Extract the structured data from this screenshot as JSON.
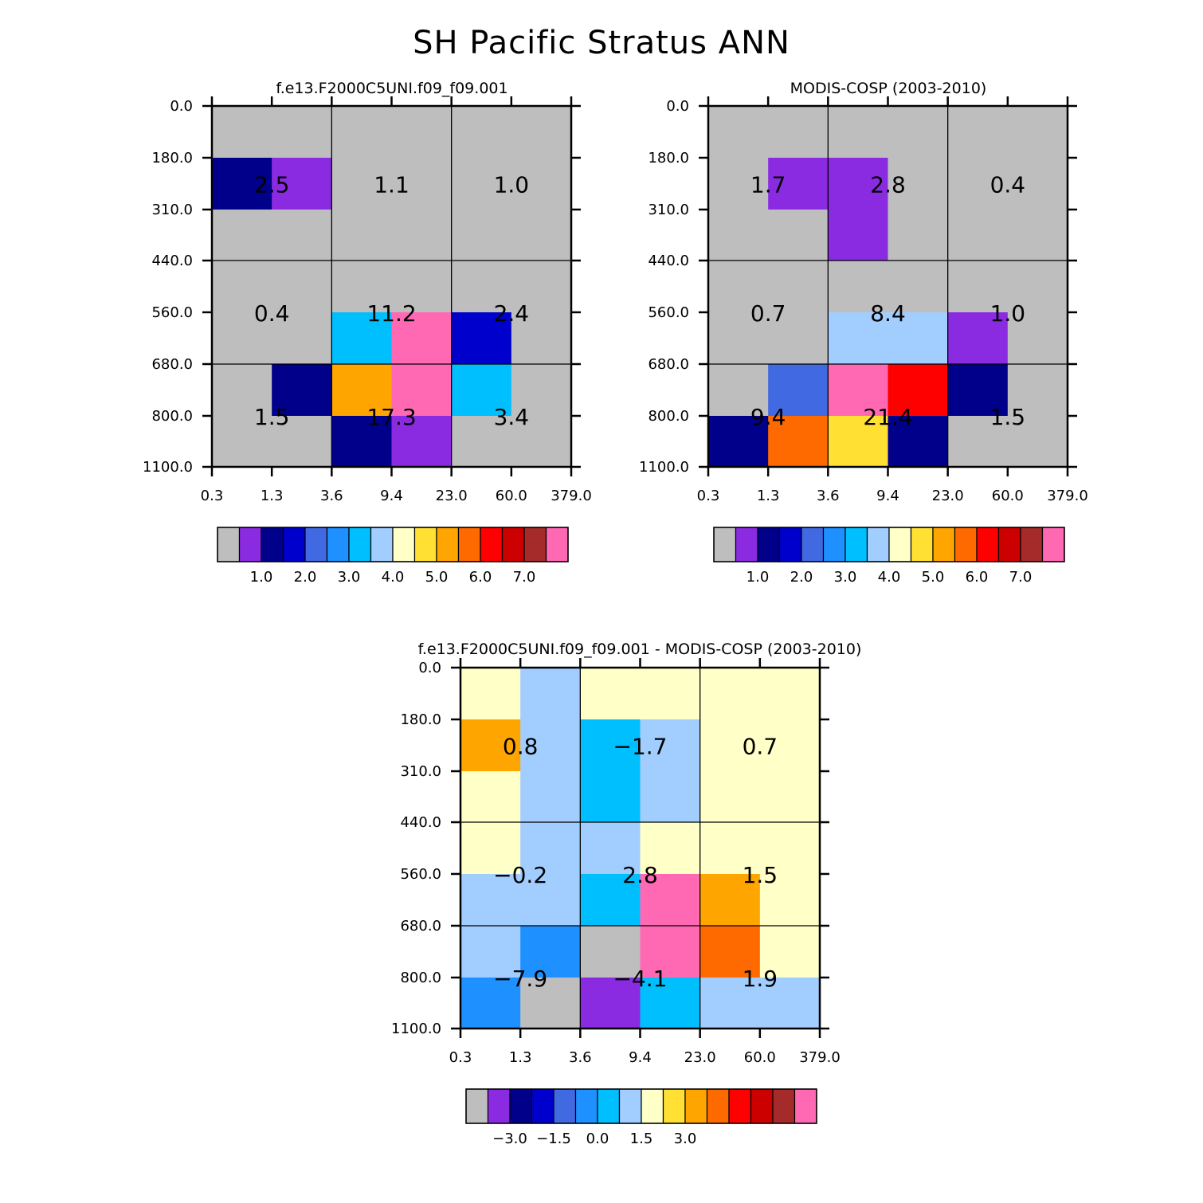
{
  "title": "SH Pacific Stratus ANN",
  "chart_data": [
    {
      "type": "heatmap",
      "title": "f.e13.F2000C5UNI.f09_f09.001",
      "x_tick_labels": [
        "0.3",
        "1.3",
        "3.6",
        "9.4",
        "23.0",
        "60.0",
        "379.0"
      ],
      "y_tick_labels": [
        "0.0",
        "180.0",
        "310.0",
        "440.0",
        "560.0",
        "680.0",
        "800.0",
        "1100.0"
      ],
      "cells": [
        [
          "gray",
          "gray",
          "gray",
          "gray",
          "gray",
          "gray"
        ],
        [
          "navy",
          "violet",
          "gray",
          "gray",
          "gray",
          "gray"
        ],
        [
          "gray",
          "gray",
          "gray",
          "gray",
          "gray",
          "gray"
        ],
        [
          "gray",
          "gray",
          "gray",
          "gray",
          "gray",
          "gray"
        ],
        [
          "gray",
          "gray",
          "deepskyblue",
          "pink",
          "mediumblue",
          "gray"
        ],
        [
          "gray",
          "navy",
          "orange",
          "pink",
          "deepskyblue",
          "gray"
        ],
        [
          "gray",
          "gray",
          "navy",
          "violet",
          "gray",
          "gray"
        ]
      ],
      "box_values": [
        [
          "2.5",
          "1.1",
          "1.0"
        ],
        [
          "0.4",
          "11.2",
          "2.4"
        ],
        [
          "1.5",
          "17.3",
          "3.4"
        ]
      ],
      "colorbar_ticks": [
        "1.0",
        "2.0",
        "3.0",
        "4.0",
        "5.0",
        "6.0",
        "7.0"
      ]
    },
    {
      "type": "heatmap",
      "title": "MODIS-COSP (2003-2010)",
      "x_tick_labels": [
        "0.3",
        "1.3",
        "3.6",
        "9.4",
        "23.0",
        "60.0",
        "379.0"
      ],
      "y_tick_labels": [
        "0.0",
        "180.0",
        "310.0",
        "440.0",
        "560.0",
        "680.0",
        "800.0",
        "1100.0"
      ],
      "cells": [
        [
          "gray",
          "gray",
          "gray",
          "gray",
          "gray",
          "gray"
        ],
        [
          "gray",
          "violet",
          "violet",
          "gray",
          "gray",
          "gray"
        ],
        [
          "gray",
          "gray",
          "violet",
          "gray",
          "gray",
          "gray"
        ],
        [
          "gray",
          "gray",
          "gray",
          "gray",
          "gray",
          "gray"
        ],
        [
          "gray",
          "gray",
          "lightblue",
          "lightblue",
          "violet",
          "gray"
        ],
        [
          "gray",
          "royalblue",
          "pink",
          "red",
          "navy",
          "gray"
        ],
        [
          "navy",
          "darkorange",
          "gold",
          "navy",
          "gray",
          "gray"
        ]
      ],
      "box_values": [
        [
          "1.7",
          "2.8",
          "0.4"
        ],
        [
          "0.7",
          "8.4",
          "1.0"
        ],
        [
          "9.4",
          "21.4",
          "1.5"
        ]
      ],
      "colorbar_ticks": [
        "1.0",
        "2.0",
        "3.0",
        "4.0",
        "5.0",
        "6.0",
        "7.0"
      ]
    },
    {
      "type": "heatmap",
      "title": "f.e13.F2000C5UNI.f09_f09.001 - MODIS-COSP (2003-2010)",
      "x_tick_labels": [
        "0.3",
        "1.3",
        "3.6",
        "9.4",
        "23.0",
        "60.0",
        "379.0"
      ],
      "y_tick_labels": [
        "0.0",
        "180.0",
        "310.0",
        "440.0",
        "560.0",
        "680.0",
        "800.0",
        "1100.0"
      ],
      "cells": [
        [
          "lightyellow",
          "lightblue",
          "lightyellow",
          "lightyellow",
          "lightyellow",
          "lightyellow"
        ],
        [
          "orange",
          "lightblue",
          "deepskyblue",
          "lightblue",
          "lightyellow",
          "lightyellow"
        ],
        [
          "lightyellow",
          "lightblue",
          "deepskyblue",
          "lightblue",
          "lightyellow",
          "lightyellow"
        ],
        [
          "lightyellow",
          "lightblue",
          "lightblue",
          "lightyellow",
          "lightyellow",
          "lightyellow"
        ],
        [
          "lightblue",
          "lightblue",
          "deepskyblue",
          "pink",
          "orange",
          "lightyellow"
        ],
        [
          "lightblue",
          "dodgerblue",
          "gray",
          "pink",
          "darkorange",
          "lightyellow"
        ],
        [
          "dodgerblue",
          "gray",
          "violet",
          "deepskyblue",
          "lightblue",
          "lightblue"
        ]
      ],
      "box_values": [
        [
          "0.8",
          "−1.7",
          "0.7"
        ],
        [
          "−0.2",
          "2.8",
          "1.5"
        ],
        [
          "−7.9",
          "−4.1",
          "1.9"
        ]
      ],
      "colorbar_ticks": [
        "−3.0",
        "−1.5",
        "0.0",
        "1.5",
        "3.0"
      ]
    }
  ],
  "palette": {
    "gray": "#bebebe",
    "violet": "#8a2be2",
    "navy": "#00008b",
    "mediumblue": "#0000cd",
    "royalblue": "#4169e1",
    "dodgerblue": "#1e90ff",
    "deepskyblue": "#00bfff",
    "lightblue": "#a2cdff",
    "lightyellow": "#ffffc8",
    "gold": "#ffe033",
    "orange": "#ffa500",
    "darkorange": "#ff6a00",
    "red": "#ff0000",
    "darkred": "#cd0000",
    "brown": "#a52a2a",
    "pink": "#ff69b4"
  },
  "colorbar_colors": [
    "gray",
    "violet",
    "navy",
    "mediumblue",
    "royalblue",
    "dodgerblue",
    "deepskyblue",
    "lightblue",
    "lightyellow",
    "gold",
    "orange",
    "darkorange",
    "red",
    "darkred",
    "brown",
    "pink"
  ]
}
